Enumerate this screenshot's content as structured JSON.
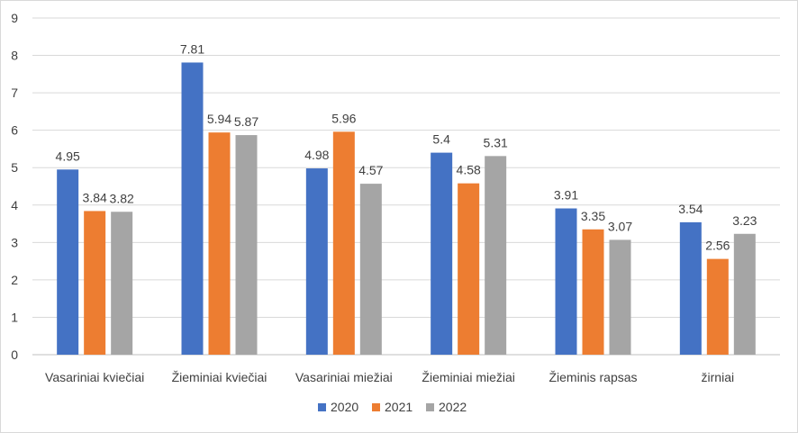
{
  "chart_data": {
    "type": "bar",
    "categories": [
      "Vasariniai kviečiai",
      "Žieminiai kviečiai",
      "Vasariniai miežiai",
      "Žieminiai miežiai",
      "Žieminis rapsas",
      "žirniai"
    ],
    "series": [
      {
        "name": "2020",
        "color": "#4472c4",
        "values": [
          4.95,
          7.81,
          4.98,
          5.4,
          3.91,
          3.54
        ],
        "labels": [
          "4.95",
          "7.81",
          "4.98",
          "5.4",
          "3.91",
          "3.54"
        ]
      },
      {
        "name": "2021",
        "color": "#ed7d31",
        "values": [
          3.84,
          5.94,
          5.96,
          4.58,
          3.35,
          2.56
        ],
        "labels": [
          "3.84",
          "5.94",
          "5.96",
          "4.58",
          "3.35",
          "2.56"
        ]
      },
      {
        "name": "2022",
        "color": "#a5a5a5",
        "values": [
          3.82,
          5.87,
          4.57,
          5.31,
          3.07,
          3.23
        ],
        "labels": [
          "3.82",
          "5.87",
          "4.57",
          "5.31",
          "3.07",
          "3.23"
        ]
      }
    ],
    "ylim": [
      0,
      9
    ],
    "yticks": [
      "0",
      "1",
      "2",
      "3",
      "4",
      "5",
      "6",
      "7",
      "8",
      "9"
    ],
    "grid": true,
    "legend_position": "bottom"
  }
}
